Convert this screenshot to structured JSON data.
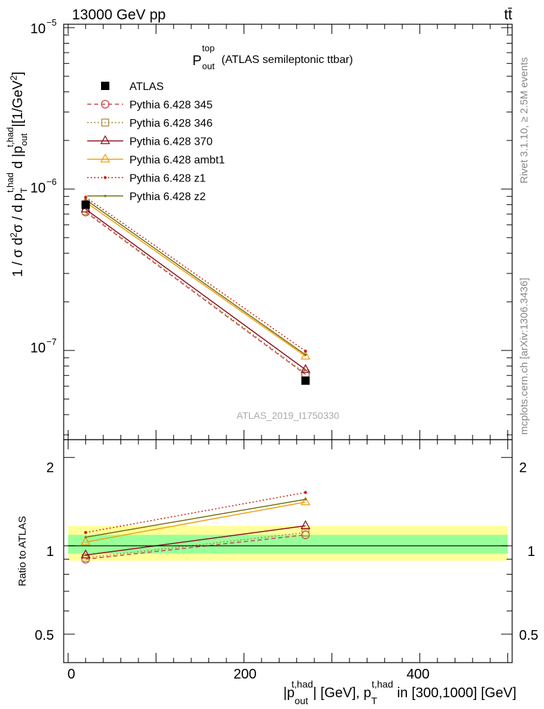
{
  "header": {
    "energy_label": "13000 GeV pp",
    "process_label": "tt̄"
  },
  "side_labels": {
    "rivet": "Rivet 3.1.10, ≥ 2.5M events",
    "mcplots": "mcplots.cern.ch [arXiv:1306.3436]"
  },
  "chart_data": [
    {
      "type": "line",
      "title_main": "P",
      "title_sup": "top",
      "title_sub": "out",
      "title_rest": "(ATLAS semileptonic ttbar)",
      "watermark": "ATLAS_2019_I1750330",
      "ylabel": "1 / σ d²σ / d p_T^{t,had} d |p_out^{t,had}|[1/GeV²]",
      "yscale": "log",
      "ylim": [
        2.8e-08,
        1.05e-05
      ],
      "xlim": [
        -5,
        505
      ],
      "ytick_labels": [
        "10",
        "10",
        "10"
      ],
      "ytick_exponents": [
        "−5",
        "−6",
        "−7"
      ],
      "grid": false,
      "legend_position": "top-left",
      "series": [
        {
          "name": "ATLAS",
          "x": [
            20,
            270
          ],
          "y": [
            8e-07,
            6.5e-08
          ],
          "color": "#000000",
          "marker": "square-filled",
          "line": "none"
        },
        {
          "name": "Pythia 6.428 345",
          "x": [
            20,
            270
          ],
          "y": [
            7.2e-07,
            7.1e-08
          ],
          "color": "#c8464d",
          "marker": "circle-open",
          "line": "dashed"
        },
        {
          "name": "Pythia 6.428 346",
          "x": [
            20,
            270
          ],
          "y": [
            7.3e-07,
            7.2e-08
          ],
          "color": "#a88a3c",
          "marker": "square-open",
          "line": "dotted"
        },
        {
          "name": "Pythia 6.428 370",
          "x": [
            20,
            270
          ],
          "y": [
            7.5e-07,
            7.6e-08
          ],
          "color": "#8c1020",
          "marker": "triangle-open",
          "line": "solid"
        },
        {
          "name": "Pythia 6.428 ambt1",
          "x": [
            20,
            270
          ],
          "y": [
            8.3e-07,
            9.2e-08
          ],
          "color": "#f0a010",
          "marker": "triangle-open",
          "line": "solid"
        },
        {
          "name": "Pythia 6.428 z1",
          "x": [
            20,
            270
          ],
          "y": [
            8.9e-07,
            9.9e-08
          ],
          "color": "#d02010",
          "marker": "star-small",
          "line": "dotted"
        },
        {
          "name": "Pythia 6.428 z2",
          "x": [
            20,
            270
          ],
          "y": [
            8.6e-07,
            9.4e-08
          ],
          "color": "#707010",
          "marker": "dot-small",
          "line": "solid"
        }
      ]
    },
    {
      "type": "line",
      "ylabel": "Ratio to ATLAS",
      "yscale": "log",
      "ylim": [
        0.4,
        2.3
      ],
      "xlim": [
        -5,
        505
      ],
      "xlabel": "|p_out^{t,had}| [GeV], p_T^{t,had} in [300,1000] [GeV]",
      "xtick_labels": [
        "0",
        "200",
        "400"
      ],
      "ytick_labels": [
        "2",
        "1",
        "0.5"
      ],
      "bands": [
        {
          "color": "#ffff99",
          "low": 0.89,
          "high": 1.17
        },
        {
          "color": "#99ff99",
          "low": 0.94,
          "high": 1.09
        }
      ],
      "series": [
        {
          "name": "Pythia 6.428 345",
          "x": [
            20,
            270
          ],
          "y": [
            0.9,
            1.09
          ],
          "color": "#c8464d",
          "marker": "circle-open",
          "line": "dashed"
        },
        {
          "name": "Pythia 6.428 346",
          "x": [
            20,
            270
          ],
          "y": [
            0.91,
            1.11
          ],
          "color": "#a88a3c",
          "marker": "square-open",
          "line": "dotted"
        },
        {
          "name": "Pythia 6.428 370",
          "x": [
            20,
            270
          ],
          "y": [
            0.93,
            1.17
          ],
          "color": "#8c1020",
          "marker": "triangle-open",
          "line": "solid"
        },
        {
          "name": "Pythia 6.428 ambt1",
          "x": [
            20,
            270
          ],
          "y": [
            1.03,
            1.41
          ],
          "color": "#f0a010",
          "marker": "triangle-open",
          "line": "solid"
        },
        {
          "name": "Pythia 6.428 z1",
          "x": [
            20,
            270
          ],
          "y": [
            1.11,
            1.52
          ],
          "color": "#d02010",
          "marker": "star-small",
          "line": "dotted"
        },
        {
          "name": "Pythia 6.428 z2",
          "x": [
            20,
            270
          ],
          "y": [
            1.07,
            1.44
          ],
          "color": "#707010",
          "marker": "dot-small",
          "line": "solid"
        }
      ]
    }
  ]
}
